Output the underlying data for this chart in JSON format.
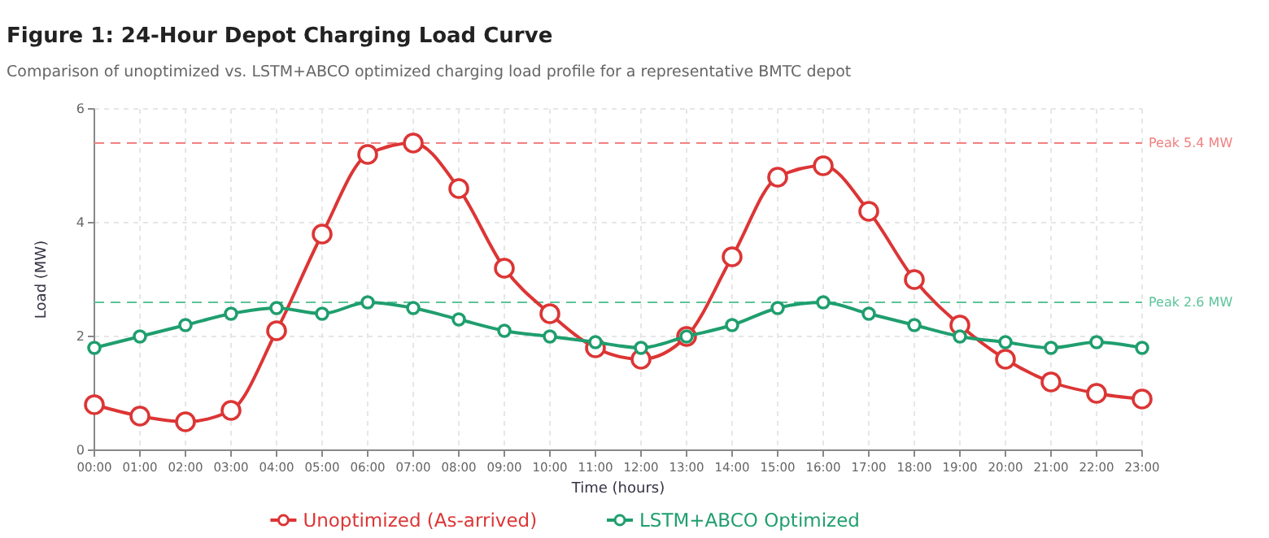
{
  "chart_data": {
    "type": "line",
    "title": "Figure 1: 24-Hour Depot Charging Load Curve",
    "subtitle": "Comparison of unoptimized vs. LSTM+ABCO optimized charging load profile for a representative BMTC depot",
    "xlabel": "Time (hours)",
    "ylabel": "Load (MW)",
    "categories": [
      "00:00",
      "01:00",
      "02:00",
      "03:00",
      "04:00",
      "05:00",
      "06:00",
      "07:00",
      "08:00",
      "09:00",
      "10:00",
      "11:00",
      "12:00",
      "13:00",
      "14:00",
      "15:00",
      "16:00",
      "17:00",
      "18:00",
      "19:00",
      "20:00",
      "21:00",
      "22:00",
      "23:00"
    ],
    "series": [
      {
        "name": "Unoptimized (As-arrived)",
        "color": "#dc3535",
        "values": [
          0.8,
          0.6,
          0.5,
          0.7,
          2.1,
          3.8,
          5.2,
          5.4,
          4.6,
          3.2,
          2.4,
          1.8,
          1.6,
          2.0,
          3.4,
          4.8,
          5.0,
          4.2,
          3.0,
          2.2,
          1.6,
          1.2,
          1.0,
          0.9
        ]
      },
      {
        "name": "LSTM+ABCO Optimized",
        "color": "#1f9e6e",
        "values": [
          1.8,
          2.0,
          2.2,
          2.4,
          2.5,
          2.4,
          2.6,
          2.5,
          2.3,
          2.1,
          2.0,
          1.9,
          1.8,
          2.0,
          2.2,
          2.5,
          2.6,
          2.4,
          2.2,
          2.0,
          1.9,
          1.8,
          1.9,
          1.8
        ]
      }
    ],
    "ylim": [
      0,
      6
    ],
    "yticks": [
      0,
      2,
      4,
      6
    ],
    "grid": true,
    "legend": "bottom",
    "marker": "circle",
    "line_style": "solid",
    "ref_lines": [
      {
        "axis": "y",
        "value": 5.4,
        "label": "Peak 5.4 MW",
        "color": "#f08080",
        "line_style": "dashed"
      },
      {
        "axis": "y",
        "value": 2.6,
        "label": "Peak 2.6 MW",
        "color": "#5cc49a",
        "line_style": "dashed"
      }
    ]
  }
}
